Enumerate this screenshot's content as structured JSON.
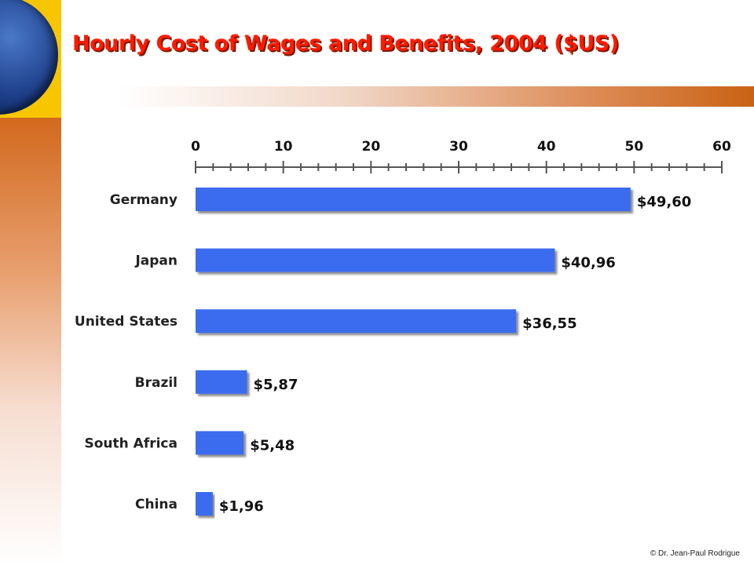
{
  "slide": {
    "title": "Hourly Cost of Wages and Benefits, 2004 ($US)",
    "copyright": "© Dr. Jean-Paul Rodrigue",
    "colors": {
      "title": "#ff1a00",
      "bar": "#3b6cf0",
      "accent": "#c96214"
    }
  },
  "chart_data": {
    "type": "bar",
    "orientation": "horizontal",
    "title": "",
    "xlabel": "",
    "ylabel": "",
    "xlim": [
      0,
      60
    ],
    "xticks": [
      "0",
      "10",
      "20",
      "30",
      "40",
      "50",
      "60"
    ],
    "tick_step": 10,
    "minor_tick_step": 2,
    "axis_position": "top",
    "grid": false,
    "categories": [
      "Germany",
      "Japan",
      "United States",
      "Brazil",
      "South Africa",
      "China"
    ],
    "values": [
      49.6,
      40.96,
      36.55,
      5.87,
      5.48,
      1.96
    ],
    "data_labels": [
      "$49,60",
      "$40,96",
      "$36,55",
      "$5,87",
      "$5,48",
      "$1,96"
    ]
  }
}
